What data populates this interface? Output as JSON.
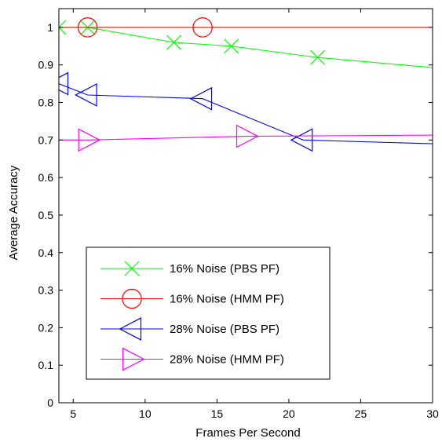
{
  "chart_data": {
    "type": "line",
    "title": "",
    "xlabel": "Frames Per Second",
    "ylabel": "Average Accuracy",
    "xlim": [
      4,
      30
    ],
    "ylim": [
      0,
      1.05
    ],
    "xticks": [
      5,
      10,
      15,
      20,
      25,
      30
    ],
    "yticks": [
      0,
      0.1,
      0.2,
      0.3,
      0.4,
      0.5,
      0.6,
      0.7,
      0.8,
      0.9,
      1
    ],
    "grid": false,
    "legend_position": "bottom-left",
    "series": [
      {
        "name": "16% Noise (PBS PF)",
        "color": "#00ff00",
        "marker": "x",
        "x": [
          4,
          6,
          12,
          16,
          22,
          30
        ],
        "y": [
          1.0,
          1.0,
          0.96,
          0.95,
          0.92,
          0.893
        ],
        "marker_x": [
          4,
          6,
          12,
          16,
          22
        ]
      },
      {
        "name": "16% Noise (HMM PF)",
        "color": "#ff0000",
        "marker": "circle",
        "x": [
          4,
          6,
          14,
          30
        ],
        "y": [
          1.0,
          1.0,
          1.0,
          1.0
        ],
        "marker_x": [
          6,
          14
        ]
      },
      {
        "name": "28% Noise (PBS PF)",
        "color": "#0000ff",
        "marker": "triangle-left",
        "x": [
          4,
          6,
          14,
          21,
          30
        ],
        "y": [
          0.85,
          0.82,
          0.81,
          0.7,
          0.69
        ],
        "marker_x": [
          4,
          6,
          14,
          21
        ]
      },
      {
        "name": "28% Noise (HMM PF)",
        "color": "#ff00ff",
        "marker": "triangle-right",
        "x": [
          4,
          6,
          17,
          30
        ],
        "y": [
          0.7,
          0.7,
          0.71,
          0.713
        ],
        "marker_x": [
          6,
          17
        ]
      }
    ]
  }
}
